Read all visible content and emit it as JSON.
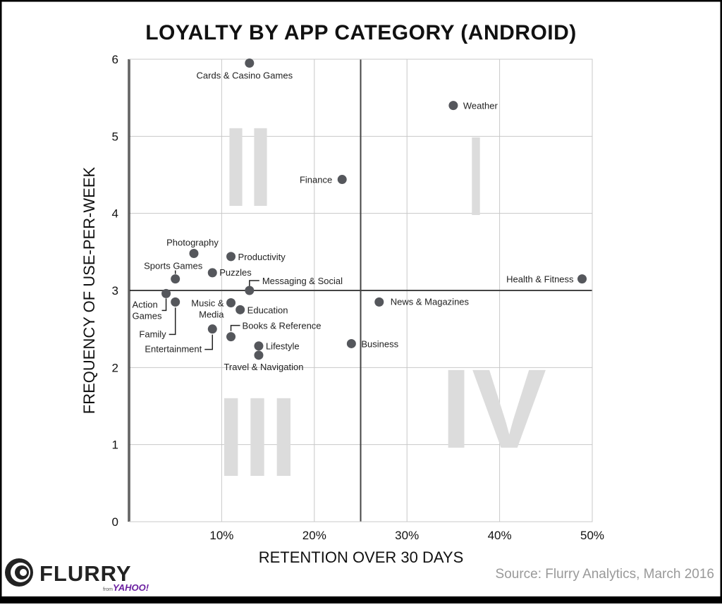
{
  "chart_data": {
    "type": "scatter",
    "title": "LOYALTY BY APP CATEGORY (ANDROID)",
    "xlabel": "RETENTION OVER 30 DAYS",
    "ylabel": "FREQUENCY OF USE-PER-WEEK",
    "xlim": [
      0,
      50
    ],
    "ylim": [
      0,
      6
    ],
    "x_ticks": [
      "10%",
      "20%",
      "30%",
      "40%",
      "50%"
    ],
    "x_tick_values": [
      10,
      20,
      30,
      40,
      50
    ],
    "y_ticks": [
      "0",
      "1",
      "2",
      "3",
      "4",
      "5",
      "6"
    ],
    "y_tick_values": [
      0,
      1,
      2,
      3,
      4,
      5,
      6
    ],
    "grid": true,
    "quadrant_dividers": {
      "x": 25,
      "y": 3
    },
    "quadrant_labels": {
      "I": "I",
      "II": "II",
      "III": "III",
      "IV": "IV"
    },
    "point_color": "#55575c",
    "points": [
      {
        "label": "Cards & Casino Games",
        "x": 13,
        "y": 5.95
      },
      {
        "label": "Weather",
        "x": 35,
        "y": 5.4
      },
      {
        "label": "Finance",
        "x": 23,
        "y": 4.44
      },
      {
        "label": "Health & Fitness",
        "x": 48.9,
        "y": 3.15
      },
      {
        "label": "News & Magazines",
        "x": 27,
        "y": 2.85
      },
      {
        "label": "Business",
        "x": 24,
        "y": 2.31
      },
      {
        "label": "Photography",
        "x": 7,
        "y": 3.48
      },
      {
        "label": "Productivity",
        "x": 11,
        "y": 3.44
      },
      {
        "label": "Puzzles",
        "x": 9,
        "y": 3.23
      },
      {
        "label": "Sports Games",
        "x": 5,
        "y": 3.15
      },
      {
        "label": "Messaging & Social",
        "x": 13,
        "y": 3.0
      },
      {
        "label": "Action Games",
        "x": 4,
        "y": 2.96
      },
      {
        "label": "Family",
        "x": 5,
        "y": 2.85
      },
      {
        "label": "Music & Media",
        "x": 11,
        "y": 2.84
      },
      {
        "label": "Education",
        "x": 12,
        "y": 2.75
      },
      {
        "label": "Entertainment",
        "x": 9,
        "y": 2.5
      },
      {
        "label": "Books & Reference",
        "x": 11,
        "y": 2.4
      },
      {
        "label": "Lifestyle",
        "x": 14,
        "y": 2.28
      },
      {
        "label": "Travel & Navigation",
        "x": 14,
        "y": 2.16
      }
    ]
  },
  "footer": {
    "logo_text": "FLURRY",
    "logo_sub_from": "from",
    "logo_sub_brand": "YAHOO!",
    "source": "Source: Flurry Analytics, March 2016"
  }
}
